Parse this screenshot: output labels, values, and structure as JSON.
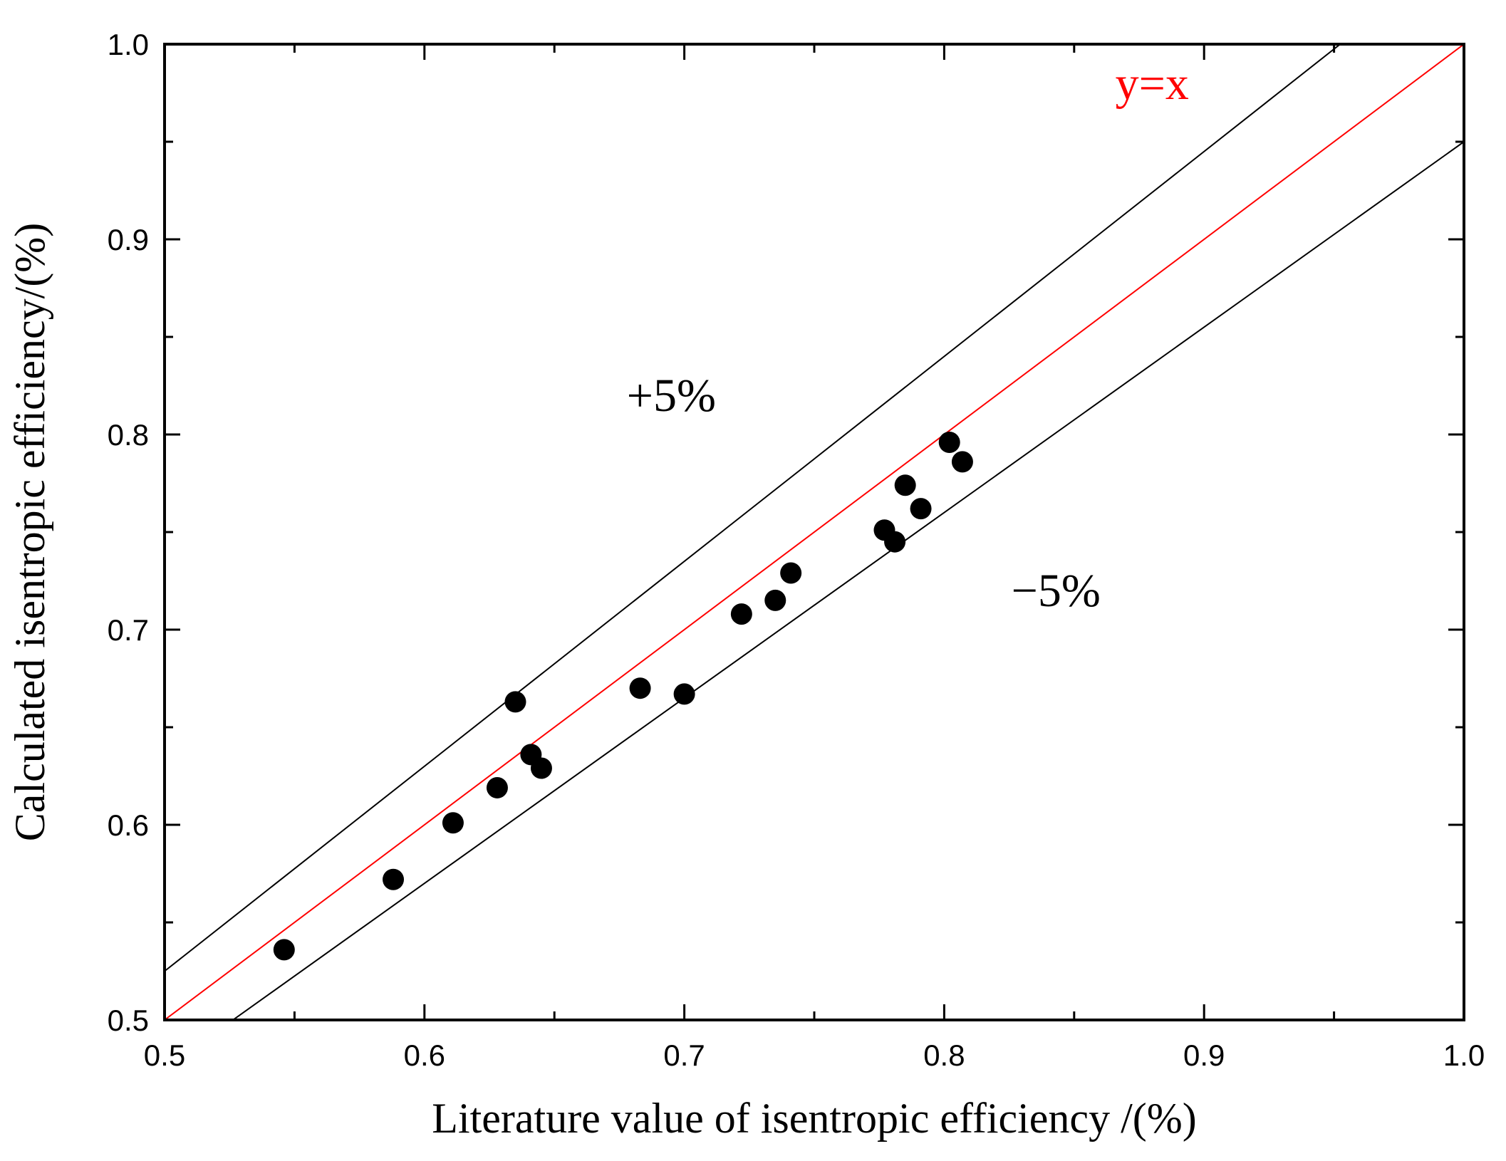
{
  "chart_data": {
    "type": "scatter",
    "title": "",
    "xlabel": "Literature value of isentropic efficiency /(%)",
    "ylabel": "Calculated isentropic efficiency/(%)",
    "xlim": [
      0.5,
      1.0
    ],
    "ylim": [
      0.5,
      1.0
    ],
    "xticks": [
      0.5,
      0.6,
      0.7,
      0.8,
      0.9,
      1.0
    ],
    "yticks": [
      0.5,
      0.6,
      0.7,
      0.8,
      0.9,
      1.0
    ],
    "xtick_labels": [
      "0.5",
      "0.6",
      "0.7",
      "0.8",
      "0.9",
      "1.0"
    ],
    "ytick_labels": [
      "0.5",
      "0.6",
      "0.7",
      "0.8",
      "0.9",
      "1.0"
    ],
    "grid": false,
    "series": [
      {
        "name": "data",
        "color": "#000000",
        "points": [
          {
            "x": 0.546,
            "y": 0.536
          },
          {
            "x": 0.588,
            "y": 0.572
          },
          {
            "x": 0.611,
            "y": 0.601
          },
          {
            "x": 0.628,
            "y": 0.619
          },
          {
            "x": 0.635,
            "y": 0.663
          },
          {
            "x": 0.641,
            "y": 0.636
          },
          {
            "x": 0.645,
            "y": 0.629
          },
          {
            "x": 0.683,
            "y": 0.67
          },
          {
            "x": 0.7,
            "y": 0.667
          },
          {
            "x": 0.722,
            "y": 0.708
          },
          {
            "x": 0.735,
            "y": 0.715
          },
          {
            "x": 0.741,
            "y": 0.729
          },
          {
            "x": 0.777,
            "y": 0.751
          },
          {
            "x": 0.781,
            "y": 0.745
          },
          {
            "x": 0.785,
            "y": 0.774
          },
          {
            "x": 0.791,
            "y": 0.762
          },
          {
            "x": 0.802,
            "y": 0.796
          },
          {
            "x": 0.807,
            "y": 0.786
          }
        ]
      }
    ],
    "reference_lines": [
      {
        "name": "y=x",
        "slope": 1.0,
        "color": "#ff0000"
      },
      {
        "name": "+5%",
        "slope": 1.05,
        "color": "#000000"
      },
      {
        "name": "−5%",
        "slope": 0.95,
        "color": "#000000"
      }
    ],
    "annotations": [
      {
        "text": "y=x",
        "x": 0.88,
        "y": 0.98,
        "color": "#ff0000"
      },
      {
        "text": "+5%",
        "x": 0.695,
        "y": 0.82,
        "color": "#000000"
      },
      {
        "text": "−5%",
        "x": 0.843,
        "y": 0.72,
        "color": "#000000"
      }
    ]
  }
}
